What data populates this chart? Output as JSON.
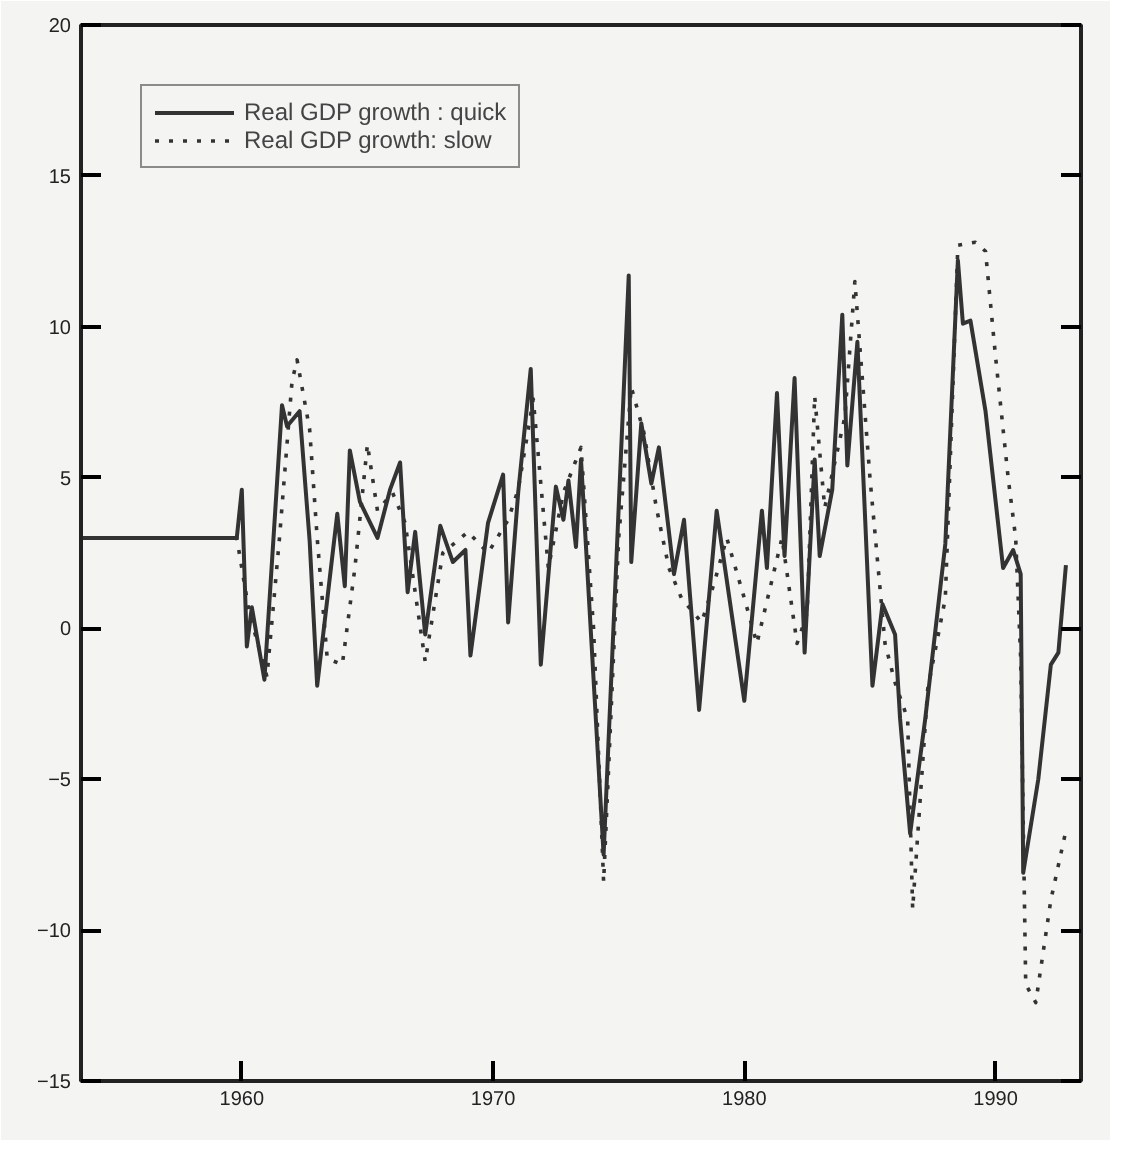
{
  "chart_data": {
    "type": "line",
    "xlim": [
      1953.6,
      1993.4
    ],
    "xticks": [
      1960,
      1970,
      1980,
      1990
    ],
    "ylim": [
      -15,
      20
    ],
    "yticks": [
      -15,
      -10,
      -5,
      0,
      5,
      10,
      15,
      20
    ],
    "grid": false,
    "legend": "top left",
    "series": [
      {
        "name": "Real GDP growth : quick",
        "color": "#333333",
        "line_style": "solid",
        "x": [
          1953.6,
          1959.8,
          1960.0,
          1960.2,
          1960.4,
          1960.9,
          1961.6,
          1961.8,
          1962.3,
          1962.7,
          1963.0,
          1963.8,
          1964.1,
          1964.3,
          1964.7,
          1965.4,
          1965.9,
          1966.3,
          1966.6,
          1966.9,
          1967.3,
          1967.9,
          1968.4,
          1968.9,
          1969.1,
          1969.8,
          1970.4,
          1970.6,
          1971.0,
          1971.5,
          1971.9,
          1972.5,
          1972.8,
          1973.0,
          1973.3,
          1973.5,
          1974.4,
          1975.4,
          1975.5,
          1975.9,
          1976.3,
          1976.6,
          1977.2,
          1977.6,
          1978.2,
          1978.9,
          1980.0,
          1980.7,
          1980.9,
          1981.3,
          1981.6,
          1982.0,
          1982.4,
          1982.8,
          1983.0,
          1983.5,
          1983.9,
          1984.1,
          1984.5,
          1985.1,
          1985.5,
          1986.0,
          1986.2,
          1986.6,
          1987.2,
          1988.0,
          1988.5,
          1988.7,
          1989.0,
          1989.6,
          1990.3,
          1990.7,
          1991.0,
          1991.1,
          1991.7,
          1992.2,
          1992.5,
          1992.8
        ],
        "values": [
          3,
          3,
          4.6,
          -0.6,
          0.7,
          -1.7,
          7.4,
          6.7,
          7.2,
          2.9,
          -1.9,
          3.8,
          1.4,
          5.9,
          4.2,
          3.0,
          4.6,
          5.5,
          1.2,
          3.2,
          -0.2,
          3.4,
          2.2,
          2.6,
          -0.9,
          3.5,
          5.1,
          0.2,
          4.5,
          8.6,
          -1.2,
          4.7,
          3.6,
          4.9,
          2.7,
          5.6,
          -7.5,
          11.7,
          2.2,
          6.8,
          4.8,
          6.0,
          1.8,
          3.6,
          -2.7,
          3.9,
          -2.4,
          3.9,
          2.0,
          7.8,
          2.4,
          8.3,
          -0.8,
          5.6,
          2.4,
          4.6,
          10.4,
          5.4,
          9.5,
          -1.9,
          0.8,
          -0.2,
          -3.0,
          -6.8,
          -3.0,
          2.8,
          12.2,
          10.1,
          10.2,
          7.2,
          2.0,
          2.6,
          1.8,
          -8.1,
          -5.0,
          -1.2,
          -0.8,
          2.1
        ]
      },
      {
        "name": "Real GDP growth: slow",
        "color": "#333333",
        "line_style": "dotted",
        "x": [
          1953.6,
          1959.8,
          1960.3,
          1961.0,
          1961.5,
          1962.0,
          1962.2,
          1962.7,
          1963.0,
          1963.4,
          1964.0,
          1964.5,
          1965.0,
          1965.4,
          1966.0,
          1966.5,
          1967.3,
          1968.0,
          1969.0,
          1969.8,
          1970.6,
          1971.0,
          1971.6,
          1972.2,
          1972.8,
          1973.5,
          1974.0,
          1974.4,
          1975.0,
          1975.5,
          1976.0,
          1976.5,
          1977.0,
          1977.5,
          1978.3,
          1978.8,
          1979.3,
          1980.0,
          1980.5,
          1981.5,
          1982.1,
          1982.5,
          1982.8,
          1983.2,
          1984.0,
          1984.4,
          1985.0,
          1985.6,
          1986.0,
          1986.5,
          1986.7,
          1987.3,
          1988.0,
          1988.5,
          1989.2,
          1989.6,
          1990.0,
          1990.5,
          1990.8,
          1991.0,
          1991.2,
          1991.6,
          1992.2,
          1992.8
        ],
        "values": [
          3,
          3,
          0.5,
          -1.6,
          3.0,
          8.2,
          8.9,
          6.6,
          3.0,
          -1.0,
          -1.2,
          2.0,
          6.1,
          3.9,
          4.5,
          3.5,
          -1.1,
          2.5,
          3.2,
          2.5,
          3.6,
          4.6,
          7.6,
          2.0,
          4.5,
          6.0,
          0.0,
          -8.4,
          3.0,
          8.0,
          6.5,
          4.0,
          2.0,
          1.0,
          0.2,
          1.5,
          3.0,
          1.0,
          -0.5,
          3.0,
          -0.5,
          0.5,
          7.7,
          4.0,
          7.0,
          11.5,
          5.0,
          -0.5,
          -1.8,
          -3.0,
          -9.3,
          -2.0,
          1.0,
          12.7,
          12.8,
          12.5,
          9.0,
          5.0,
          3.0,
          -1.0,
          -11.8,
          -12.4,
          -9.0,
          -6.7
        ]
      }
    ]
  }
}
